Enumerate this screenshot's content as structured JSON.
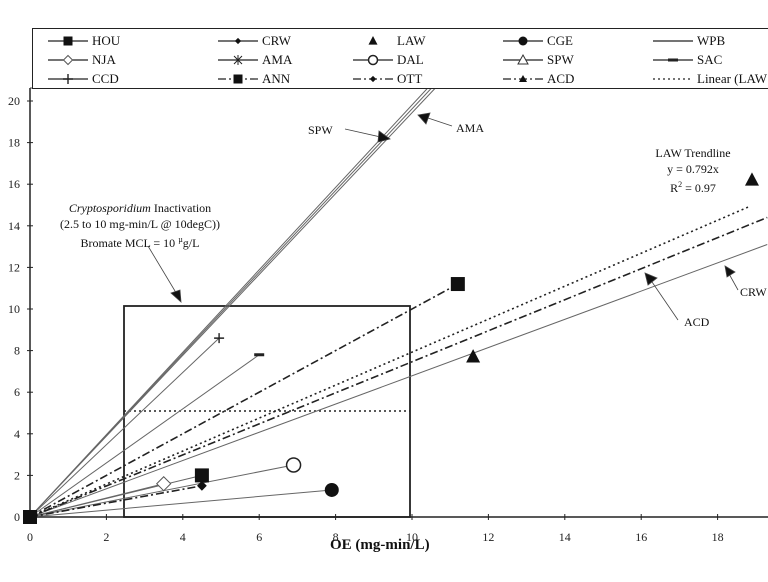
{
  "chart_data": {
    "type": "scatter",
    "title": "",
    "xlabel": "OE (mg-min/L)",
    "ylabel": "",
    "xlim": [
      0,
      19.3
    ],
    "ylim": [
      0,
      20
    ],
    "x_ticks": [
      0,
      2,
      4,
      6,
      8,
      10,
      12,
      14,
      16,
      18
    ],
    "y_ticks": [
      0,
      2,
      4,
      6,
      8,
      10,
      12,
      14,
      16,
      18,
      20
    ],
    "grid": false,
    "legend_position": "top",
    "series": [
      {
        "name": "HOU",
        "marker": "filled-square",
        "line": "solid",
        "points": [
          [
            0,
            0
          ],
          [
            4.5,
            2.0
          ]
        ]
      },
      {
        "name": "CRW",
        "marker": "filled-diamond",
        "line": "solid",
        "points": [
          [
            0,
            0
          ],
          [
            19.3,
            13.1
          ]
        ]
      },
      {
        "name": "LAW",
        "marker": "filled-triangle",
        "line": "none",
        "points": [
          [
            11.6,
            7.7
          ],
          [
            18.9,
            16.2
          ]
        ]
      },
      {
        "name": "CGE",
        "marker": "filled-circle",
        "line": "solid",
        "points": [
          [
            0,
            0
          ],
          [
            7.9,
            1.3
          ]
        ]
      },
      {
        "name": "WPB",
        "marker": "none",
        "line": "solid",
        "points": [
          [
            0,
            0
          ],
          [
            10.5,
            20.6
          ]
        ]
      },
      {
        "name": "NJA",
        "marker": "open-diamond",
        "line": "solid",
        "points": [
          [
            0,
            0
          ],
          [
            3.5,
            1.6
          ]
        ]
      },
      {
        "name": "AMA",
        "marker": "asterisk",
        "line": "solid",
        "points": [
          [
            0,
            0
          ],
          [
            10.6,
            20.6
          ]
        ]
      },
      {
        "name": "DAL",
        "marker": "open-circle",
        "line": "solid",
        "points": [
          [
            0,
            0
          ],
          [
            6.9,
            2.5
          ]
        ]
      },
      {
        "name": "SPW",
        "marker": "open-triangle",
        "line": "solid",
        "points": [
          [
            0,
            0
          ],
          [
            10.4,
            20.6
          ]
        ]
      },
      {
        "name": "SAC",
        "marker": "dash",
        "line": "solid",
        "points": [
          [
            0,
            0
          ],
          [
            6.0,
            7.8
          ]
        ]
      },
      {
        "name": "CCD",
        "marker": "plus",
        "line": "solid",
        "points": [
          [
            0,
            0
          ],
          [
            4.95,
            8.6
          ]
        ]
      },
      {
        "name": "ANN",
        "marker": "filled-square",
        "line": "dash-dot",
        "points": [
          [
            0,
            0
          ],
          [
            11.2,
            11.2
          ]
        ]
      },
      {
        "name": "OTT",
        "marker": "filled-diamond",
        "line": "dash-dot",
        "points": [
          [
            0,
            0
          ],
          [
            4.5,
            1.5
          ]
        ]
      },
      {
        "name": "ACD",
        "marker": "filled-triangle-small",
        "line": "dash-dot",
        "points": [
          [
            0,
            0
          ],
          [
            19.3,
            14.4
          ]
        ]
      },
      {
        "name": "Linear (LAW)",
        "marker": "none",
        "line": "dotted",
        "points": [
          [
            0,
            0
          ],
          [
            18.8,
            14.9
          ]
        ]
      }
    ],
    "regions": [
      {
        "name": "Cryptosporidium inactivation box",
        "x": [
          2.5,
          10
        ],
        "y": [
          0,
          10.1
        ]
      },
      {
        "name": "Bromate threshold line",
        "x": [
          2.5,
          10
        ],
        "y": 5.1,
        "style": "dotted"
      }
    ],
    "annotations": [
      {
        "text": "SPW",
        "arrow_to": [
          9.2,
          18.3
        ]
      },
      {
        "text": "AMA",
        "arrow_to": [
          10.2,
          19.2
        ]
      },
      {
        "text": "LAW Trendline",
        "sub": [
          "y = 0.792x",
          "R2 = 0.97"
        ]
      },
      {
        "text": "Cryptosporidium Inactivation (2.5 to 10 mg-min/L @ 10degC) Bromate MCL = 10 µg/L",
        "arrow_to": [
          3.8,
          10.5
        ]
      },
      {
        "text": "ACD",
        "arrow_to": [
          16.2,
          12.0
        ]
      },
      {
        "text": "CRW",
        "arrow_to": [
          18.3,
          11.7
        ]
      }
    ]
  },
  "legend": [
    {
      "label": "HOU"
    },
    {
      "label": "CRW"
    },
    {
      "label": "LAW"
    },
    {
      "label": "CGE"
    },
    {
      "label": "WPB"
    },
    {
      "label": "NJA"
    },
    {
      "label": "AMA"
    },
    {
      "label": "DAL"
    },
    {
      "label": "SPW"
    },
    {
      "label": "SAC"
    },
    {
      "label": "CCD"
    },
    {
      "label": "ANN"
    },
    {
      "label": "OTT"
    },
    {
      "label": "ACD"
    },
    {
      "label": "Linear (LAW"
    }
  ],
  "annotations": {
    "spw": "SPW",
    "ama": "AMA",
    "law_trend_title": "LAW Trendline",
    "law_trend_eq": "y = 0.792x",
    "law_trend_r2": "R",
    "law_trend_r2_sup": "2",
    "law_trend_r2_val": " = 0.97",
    "crypto_italic": "Cryptosporidium",
    "crypto_rest": " Inactivation",
    "crypto_line2": "(2.5 to 10 mg-min/L @ 10degC))",
    "crypto_line3a": "Bromate MCL = 10 ",
    "crypto_line3_mu": "µ",
    "crypto_line3b": "g/L",
    "acd": "ACD",
    "crw": "CRW"
  },
  "axes": {
    "xlabel": "OE (mg-min/L)",
    "x_ticks": [
      "0",
      "2",
      "4",
      "6",
      "8",
      "10",
      "12",
      "14",
      "16",
      "18"
    ],
    "y_ticks": [
      "0",
      "2",
      "4",
      "6",
      "8",
      "10",
      "12",
      "14",
      "16",
      "18",
      "20"
    ]
  }
}
